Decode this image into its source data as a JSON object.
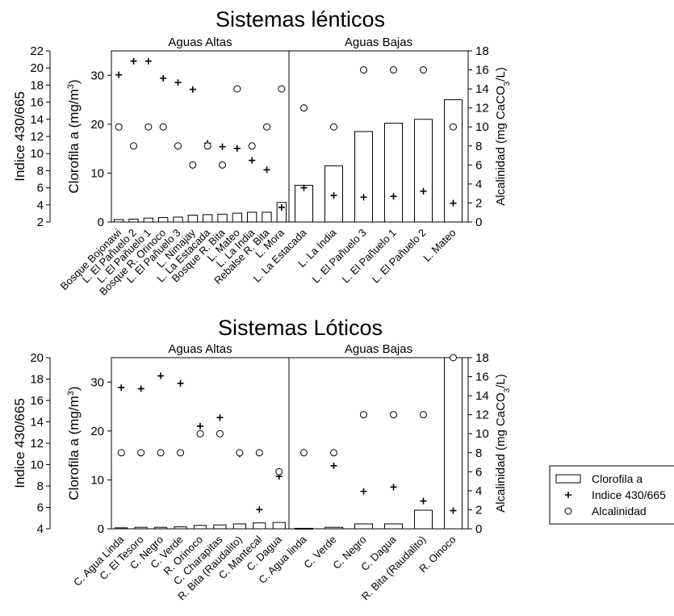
{
  "chart_data": [
    {
      "type": "bar",
      "title": "Sistemas lénticos",
      "left_axis_outer": {
        "label": "Indice 430/665",
        "range": [
          2,
          22
        ],
        "ticks": [
          2,
          4,
          6,
          8,
          10,
          12,
          14,
          16,
          18,
          20,
          22
        ]
      },
      "left_axis_inner": {
        "label": "Clorofila a (mg/m³)",
        "range": [
          0,
          35
        ],
        "ticks": [
          0,
          10,
          20,
          30
        ]
      },
      "right_axis": {
        "label": "Alcalinidad (mg CaCO₃/L)",
        "range": [
          0,
          18
        ],
        "ticks": [
          0,
          2,
          4,
          6,
          8,
          10,
          12,
          14,
          16,
          18
        ]
      },
      "panels": [
        {
          "label": "Aguas Altas",
          "categories": [
            "Bosque Bojonawi",
            "L. El Pañuelo 2",
            "L. El Pañuelo 1",
            "Bosque R. Orinoco",
            "L. El Pañuelo 3",
            "L. Nimajay",
            "L. La Estacada",
            "Bosque R. Bita",
            "L. Mateo",
            "L. La India",
            "Rebalse R. Bita",
            "L. Mora"
          ],
          "series": [
            {
              "name": "Clorofila a",
              "values": [
                0.5,
                0.6,
                0.8,
                0.9,
                1.0,
                1.4,
                1.5,
                1.6,
                1.8,
                2.0,
                2.0,
                4.0
              ]
            },
            {
              "name": "Indice 430/665",
              "values": [
                19.2,
                20.8,
                20.8,
                18.8,
                18.3,
                17.5,
                11.2,
                10.8,
                10.6,
                9.2,
                8.1,
                3.7
              ]
            },
            {
              "name": "Alcalinidad",
              "values": [
                10,
                8,
                10,
                10,
                8,
                6,
                8,
                6,
                14,
                8,
                10,
                14
              ]
            }
          ]
        },
        {
          "label": "Aguas Bajas",
          "categories": [
            "L. La Estacada",
            "L. La India",
            "L. El Pañuelo 3",
            "L. El Pañuelo 1",
            "L. El Pañuelo 2",
            "L. Mateo"
          ],
          "series": [
            {
              "name": "Clorofila a",
              "values": [
                7.5,
                11.5,
                18.5,
                20.2,
                21.0,
                25.0
              ]
            },
            {
              "name": "Indice 430/665",
              "values": [
                6.0,
                5.1,
                4.9,
                5.0,
                5.6,
                4.2
              ]
            },
            {
              "name": "Alcalinidad",
              "values": [
                12,
                10,
                16,
                16,
                16,
                10
              ]
            }
          ]
        }
      ]
    },
    {
      "type": "bar",
      "title": "Sistemas Lóticos",
      "left_axis_outer": {
        "label": "Indice 430/665",
        "range": [
          4,
          20
        ],
        "ticks": [
          4,
          6,
          8,
          10,
          12,
          14,
          16,
          18,
          20
        ]
      },
      "left_axis_inner": {
        "label": "Clorofila a (mg/m³)",
        "range": [
          0,
          35
        ],
        "ticks": [
          0,
          10,
          20,
          30
        ]
      },
      "right_axis": {
        "label": "Alcalinidad (mg CaCO₃/L)",
        "range": [
          0,
          18
        ],
        "ticks": [
          0,
          2,
          4,
          6,
          8,
          10,
          12,
          14,
          16,
          18
        ]
      },
      "panels": [
        {
          "label": "Aguas Altas",
          "categories": [
            "C. Agua Linda",
            "C. El Tesoro",
            "C. Negro",
            "C. Verde",
            "R. Orinoco",
            "C. Charapitas",
            "R. Bita (Raudalito)",
            "C. Mantecal",
            "C. Dagua"
          ],
          "series": [
            {
              "name": "Clorofila a",
              "values": [
                0.2,
                0.3,
                0.3,
                0.4,
                0.7,
                0.8,
                1.0,
                1.2,
                1.3
              ]
            },
            {
              "name": "Indice 430/665",
              "values": [
                17.2,
                17.1,
                18.3,
                17.6,
                13.6,
                14.4,
                11.0,
                5.8,
                8.9
              ]
            },
            {
              "name": "Alcalinidad",
              "values": [
                8,
                8,
                8,
                8,
                10,
                10,
                8,
                8,
                6
              ]
            }
          ]
        },
        {
          "label": "Aguas Bajas",
          "categories": [
            "C. Agua  linda",
            "C. Verde",
            "C. Negro",
            "C. Dagua",
            "R. Bita (Raudalito)",
            "R. Oinoco"
          ],
          "series": [
            {
              "name": "Clorofila a",
              "values": [
                0.1,
                0.3,
                1.0,
                1.0,
                3.8,
                35.0
              ]
            },
            {
              "name": "Indice 430/665",
              "values": [
                null,
                9.9,
                7.5,
                7.9,
                6.6,
                5.7
              ]
            },
            {
              "name": "Alcalinidad",
              "values": [
                8,
                8,
                12,
                12,
                12,
                18
              ]
            }
          ]
        }
      ]
    }
  ],
  "legend": {
    "items": [
      {
        "name": "Clorofila a",
        "marker": "bar"
      },
      {
        "name": "Indice 430/665",
        "marker": "plus"
      },
      {
        "name": "Alcalinidad",
        "marker": "circle"
      }
    ]
  }
}
